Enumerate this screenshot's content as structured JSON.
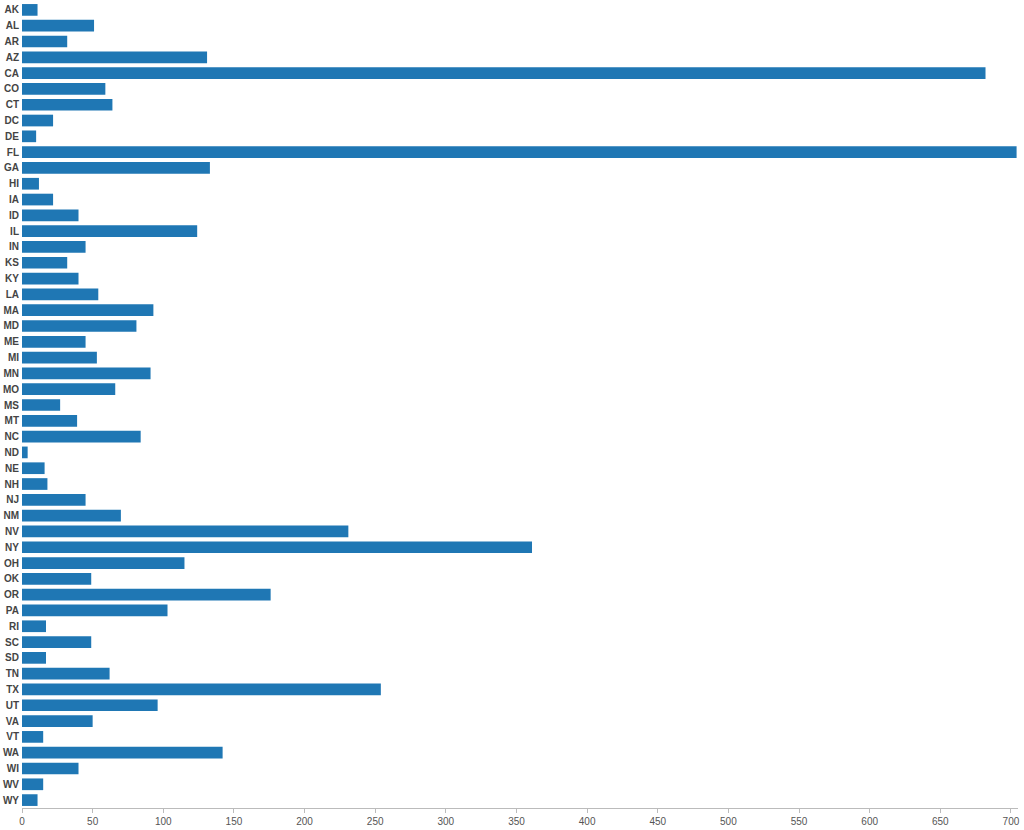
{
  "chart_data": {
    "type": "bar",
    "orientation": "horizontal",
    "categories": [
      "AK",
      "AL",
      "AR",
      "AZ",
      "CA",
      "CO",
      "CT",
      "DC",
      "DE",
      "FL",
      "GA",
      "HI",
      "IA",
      "ID",
      "IL",
      "IN",
      "KS",
      "KY",
      "LA",
      "MA",
      "MD",
      "ME",
      "MI",
      "MN",
      "MO",
      "MS",
      "MT",
      "NC",
      "ND",
      "NE",
      "NH",
      "NJ",
      "NM",
      "NV",
      "NY",
      "OH",
      "OK",
      "OR",
      "PA",
      "RI",
      "SC",
      "SD",
      "TN",
      "TX",
      "UT",
      "VA",
      "VT",
      "WA",
      "WI",
      "WV",
      "WY"
    ],
    "values": [
      11,
      51,
      32,
      131,
      682,
      59,
      64,
      22,
      10,
      704,
      133,
      12,
      22,
      40,
      124,
      45,
      32,
      40,
      54,
      93,
      81,
      45,
      53,
      91,
      66,
      27,
      39,
      84,
      4,
      16,
      18,
      45,
      70,
      231,
      361,
      115,
      49,
      176,
      103,
      17,
      49,
      17,
      62,
      254,
      96,
      50,
      15,
      142,
      40,
      15,
      11
    ],
    "color": "#1f77b4",
    "xlim": [
      0,
      705
    ],
    "xticks": [
      0,
      50,
      100,
      150,
      200,
      250,
      300,
      350,
      400,
      450,
      500,
      550,
      600,
      650,
      700
    ],
    "grid": false
  }
}
